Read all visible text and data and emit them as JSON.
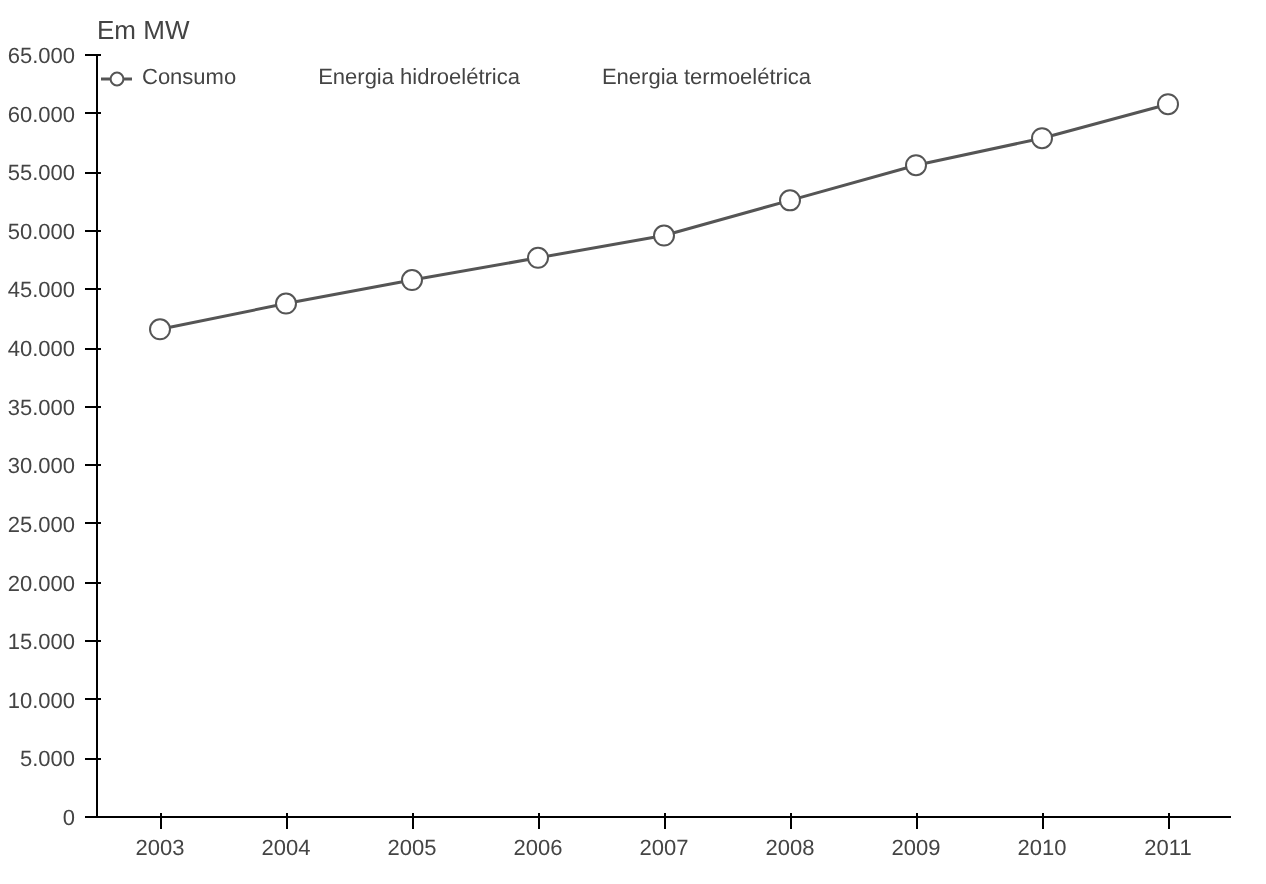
{
  "chart_data": {
    "type": "line",
    "ylabel": "Em MW",
    "categories": [
      "2003",
      "2004",
      "2005",
      "2006",
      "2007",
      "2008",
      "2009",
      "2010",
      "2011"
    ],
    "series": [
      {
        "name": "Consumo",
        "color": "#555555",
        "values": [
          41600,
          43800,
          45800,
          47700,
          49600,
          52600,
          55600,
          57900,
          60800
        ]
      },
      {
        "name": "Energia hidroelétrica",
        "values": [
          null,
          null,
          null,
          null,
          null,
          null,
          null,
          null,
          null
        ]
      },
      {
        "name": "Energia termoelétrica",
        "values": [
          null,
          null,
          null,
          null,
          null,
          null,
          null,
          null,
          null
        ]
      }
    ],
    "ylim": [
      0,
      65000
    ],
    "yticks": [
      {
        "value": 0,
        "label": "0"
      },
      {
        "value": 5000,
        "label": "5.000"
      },
      {
        "value": 10000,
        "label": "10.000"
      },
      {
        "value": 15000,
        "label": "15.000"
      },
      {
        "value": 20000,
        "label": "20.000"
      },
      {
        "value": 25000,
        "label": "25.000"
      },
      {
        "value": 30000,
        "label": "30.000"
      },
      {
        "value": 35000,
        "label": "35.000"
      },
      {
        "value": 40000,
        "label": "40.000"
      },
      {
        "value": 45000,
        "label": "45.000"
      },
      {
        "value": 50000,
        "label": "50.000"
      },
      {
        "value": 55000,
        "label": "55.000"
      },
      {
        "value": 60000,
        "label": "60.000"
      },
      {
        "value": 65000,
        "label": "65.000"
      }
    ],
    "grid": false,
    "legend": "top",
    "marker": "circle",
    "line_style": "solid"
  }
}
